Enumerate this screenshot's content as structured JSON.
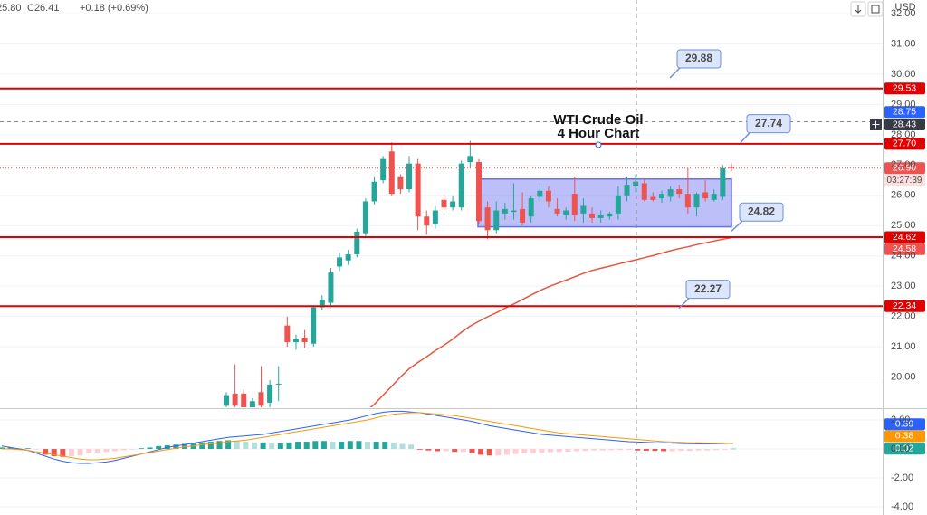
{
  "header": {
    "open_partial": "25.80",
    "close": "C26.41",
    "change": "+0.18 (+0.69%)"
  },
  "chart_data": [
    {
      "type": "candlestick",
      "currency": "USD",
      "ylim": [
        19.0,
        32.45
      ],
      "yticks": [
        {
          "value": 20,
          "label": "20.00"
        },
        {
          "value": 21,
          "label": "21.00"
        },
        {
          "value": 22,
          "label": "22.00"
        },
        {
          "value": 23,
          "label": "23.00"
        },
        {
          "value": 24,
          "label": "24.00"
        },
        {
          "value": 25,
          "label": "25.00"
        },
        {
          "value": 26,
          "label": "26.00"
        },
        {
          "value": 27,
          "label": "27.00"
        },
        {
          "value": 28,
          "label": "28.00"
        },
        {
          "value": 29,
          "label": "29.00"
        },
        {
          "value": 30,
          "label": "30.00"
        },
        {
          "value": 31,
          "label": "31.00"
        },
        {
          "value": 32,
          "label": "32.00"
        }
      ],
      "grid": true,
      "up_color": "#26a69a",
      "down_color": "#ef5350",
      "open": [
        19.05,
        19.45,
        19.45,
        19.0,
        19.5,
        19.15,
        19.75,
        21.7,
        21.15,
        21.3,
        21.1,
        22.3,
        22.45,
        23.65,
        23.85,
        24.05,
        24.75,
        25.8,
        26.5,
        27.45,
        26.6,
        26.2,
        27.05,
        25.3,
        25.05,
        25.85,
        25.6,
        25.6,
        27.1,
        27.1,
        25.6,
        24.85,
        25.4,
        25.45,
        25.55,
        25.3,
        25.95,
        26.15,
        25.55,
        25.35,
        26.05,
        25.4,
        25.4,
        25.25,
        25.3,
        25.4,
        26.0,
        26.3,
        26.4,
        25.95,
        25.9,
        25.95,
        26.2,
        26.05,
        25.6,
        26.1,
        25.85,
        25.95,
        26.95
      ],
      "high": [
        19.5,
        20.42,
        19.6,
        19.3,
        20.36,
        19.9,
        20.36,
        22.0,
        21.4,
        21.55,
        22.35,
        22.7,
        23.6,
        24.1,
        24.2,
        24.9,
        25.9,
        26.6,
        27.3,
        27.75,
        26.7,
        27.3,
        27.2,
        25.5,
        25.65,
        26.0,
        26.0,
        27.15,
        27.8,
        27.2,
        25.8,
        25.8,
        25.75,
        26.4,
        26.1,
        26.0,
        26.3,
        26.3,
        25.9,
        25.6,
        26.6,
        25.9,
        25.6,
        25.5,
        25.45,
        26.3,
        26.6,
        26.7,
        26.55,
        26.1,
        26.15,
        26.3,
        26.35,
        26.9,
        26.1,
        26.5,
        26.2,
        27.0,
        27.05
      ],
      "low": [
        18.8,
        18.9,
        18.8,
        18.8,
        18.9,
        19.0,
        19.2,
        21.0,
        20.9,
        20.95,
        21.0,
        22.2,
        22.3,
        23.5,
        23.7,
        23.95,
        24.6,
        25.7,
        26.4,
        26.0,
        26.05,
        26.1,
        24.85,
        24.7,
        24.9,
        25.5,
        25.5,
        25.5,
        26.9,
        25.05,
        24.55,
        24.75,
        25.2,
        25.2,
        25.0,
        25.1,
        25.8,
        25.6,
        25.3,
        25.2,
        25.15,
        25.1,
        25.1,
        25.1,
        25.2,
        25.2,
        25.8,
        26.1,
        25.8,
        25.8,
        25.75,
        25.8,
        25.9,
        25.4,
        25.3,
        25.8,
        25.8,
        25.85,
        26.8
      ],
      "close": [
        19.4,
        19.05,
        19.0,
        19.2,
        19.05,
        19.75,
        19.78,
        21.15,
        21.25,
        21.15,
        22.3,
        22.55,
        23.45,
        23.95,
        24.05,
        24.8,
        25.8,
        26.45,
        27.2,
        26.05,
        26.2,
        27.05,
        25.3,
        25.0,
        25.5,
        25.6,
        25.8,
        27.05,
        27.3,
        25.15,
        24.85,
        25.5,
        25.55,
        25.5,
        25.1,
        25.9,
        26.15,
        25.8,
        25.4,
        25.5,
        25.35,
        25.65,
        25.25,
        25.35,
        25.4,
        26.0,
        26.35,
        26.45,
        25.85,
        25.85,
        26.05,
        26.2,
        26.05,
        25.6,
        26.05,
        25.9,
        26.05,
        26.9,
        26.9
      ],
      "moving_average": {
        "color": "#e8553e",
        "values": [
          null,
          null,
          null,
          null,
          null,
          null,
          null,
          null,
          null,
          null,
          null,
          null,
          null,
          null,
          null,
          null,
          18.85,
          19.1,
          19.4,
          19.7,
          20.0,
          20.27,
          20.48,
          20.67,
          20.87,
          21.05,
          21.25,
          21.48,
          21.68,
          21.84,
          21.99,
          22.12,
          22.27,
          22.41,
          22.56,
          22.71,
          22.85,
          22.98,
          23.09,
          23.2,
          23.31,
          23.42,
          23.52,
          23.59,
          23.66,
          23.73,
          23.8,
          23.87,
          23.94,
          24.01,
          24.09,
          24.17,
          24.24,
          24.3,
          24.37,
          24.43,
          24.49,
          24.55,
          24.6
        ]
      },
      "levels": {
        "color": "#e00000",
        "values": [
          29.53,
          {
            "value": 27.7,
            "label": "27.70"
          },
          24.62,
          22.34
        ]
      },
      "callouts": {
        "color": "#1e3fc8",
        "values": [
          29.88,
          27.74,
          24.82,
          22.27
        ]
      },
      "annotation": [
        "WTI Crude Oil",
        "4 Hour Chart"
      ],
      "range_box": {
        "top": 26.54,
        "bottom": 24.96,
        "color": "#6b70f0"
      },
      "price_labels": [
        {
          "value": 28.75,
          "color": "#2962ff"
        },
        {
          "value": 24.58,
          "color": "#ef5350"
        }
      ],
      "crosshair": {
        "value": 28.43,
        "color": "#363a45"
      },
      "last_price": {
        "value": 26.9,
        "label": "26.90",
        "color": "#ef5350"
      },
      "countdown": "03:27:39"
    },
    {
      "type": "macd",
      "ylim": [
        -4.56,
        2.69
      ],
      "yticks": [
        {
          "value": 2,
          "label": "2.00"
        },
        {
          "value": 0,
          "label": "0.00"
        },
        {
          "value": -2,
          "label": "-2.00"
        },
        {
          "value": -4,
          "label": "-4.00"
        }
      ],
      "histogram": {
        "colors": [
          "#26a69a",
          "#b2dfdb",
          "#ffcdd2",
          "#ef5350"
        ],
        "values": [
          0.1,
          0.1,
          0.05,
          0.05,
          0.0,
          -0.4,
          -0.5,
          -0.55,
          -0.5,
          -0.45,
          -0.3,
          -0.25,
          -0.2,
          -0.15,
          -0.1,
          -0.05,
          0.05,
          0.1,
          0.2,
          0.25,
          0.3,
          0.35,
          0.4,
          0.45,
          0.5,
          0.55,
          0.6,
          0.55,
          0.5,
          0.45,
          0.45,
          0.4,
          0.4,
          0.45,
          0.5,
          0.5,
          0.55,
          0.55,
          0.5,
          0.5,
          0.55,
          0.55,
          0.5,
          0.5,
          0.5,
          0.45,
          0.35,
          0.3,
          -0.05,
          -0.1,
          -0.15,
          -0.15,
          -0.2,
          -0.2,
          -0.3,
          -0.4,
          -0.45,
          -0.45,
          -0.4,
          -0.35,
          -0.3,
          -0.28,
          -0.25,
          -0.22,
          -0.2,
          -0.18,
          -0.15,
          -0.13,
          -0.1,
          -0.1,
          -0.08,
          -0.07,
          -0.06,
          -0.1,
          -0.12,
          -0.13,
          -0.15,
          -0.15,
          -0.13,
          -0.12,
          -0.1,
          -0.1,
          -0.08,
          -0.05,
          0.02
        ]
      },
      "series": [
        {
          "color": "#2962ff",
          "values": [
            0.2,
            0.1,
            0.0,
            -0.1,
            -0.3,
            -0.5,
            -0.7,
            -0.85,
            -0.95,
            -1.0,
            -1.0,
            -0.95,
            -0.9,
            -0.8,
            -0.65,
            -0.5,
            -0.35,
            -0.2,
            -0.05,
            0.1,
            0.2,
            0.3,
            0.4,
            0.5,
            0.6,
            0.7,
            0.8,
            0.85,
            0.9,
            0.95,
            1.0,
            1.1,
            1.2,
            1.3,
            1.4,
            1.5,
            1.6,
            1.7,
            1.8,
            1.9,
            2.0,
            2.15,
            2.3,
            2.45,
            2.55,
            2.6,
            2.6,
            2.55,
            2.5,
            2.4,
            2.3,
            2.2,
            2.1,
            2.0,
            1.9,
            1.75,
            1.6,
            1.5,
            1.4,
            1.3,
            1.2,
            1.1,
            1.0,
            0.95,
            0.9,
            0.85,
            0.8,
            0.75,
            0.7,
            0.65,
            0.6,
            0.55,
            0.5,
            0.48,
            0.45,
            0.43,
            0.42,
            0.4,
            0.38,
            0.36,
            0.35,
            0.35,
            0.36,
            0.38,
            0.39
          ]
        },
        {
          "color": "#ff9800",
          "values": [
            0.0,
            0.0,
            -0.05,
            -0.1,
            -0.2,
            -0.3,
            -0.4,
            -0.5,
            -0.6,
            -0.7,
            -0.75,
            -0.75,
            -0.7,
            -0.65,
            -0.55,
            -0.45,
            -0.35,
            -0.25,
            -0.15,
            -0.05,
            0.05,
            0.15,
            0.2,
            0.3,
            0.35,
            0.4,
            0.5,
            0.55,
            0.6,
            0.7,
            0.8,
            0.9,
            1.0,
            1.1,
            1.2,
            1.3,
            1.4,
            1.5,
            1.6,
            1.7,
            1.8,
            1.9,
            2.0,
            2.15,
            2.3,
            2.4,
            2.45,
            2.5,
            2.5,
            2.45,
            2.4,
            2.35,
            2.3,
            2.2,
            2.1,
            2.0,
            1.9,
            1.8,
            1.7,
            1.6,
            1.5,
            1.4,
            1.3,
            1.2,
            1.1,
            1.05,
            1.0,
            0.95,
            0.9,
            0.85,
            0.8,
            0.75,
            0.7,
            0.65,
            0.6,
            0.55,
            0.5,
            0.48,
            0.45,
            0.43,
            0.42,
            0.41,
            0.4,
            0.39,
            0.38
          ]
        }
      ]
    }
  ]
}
